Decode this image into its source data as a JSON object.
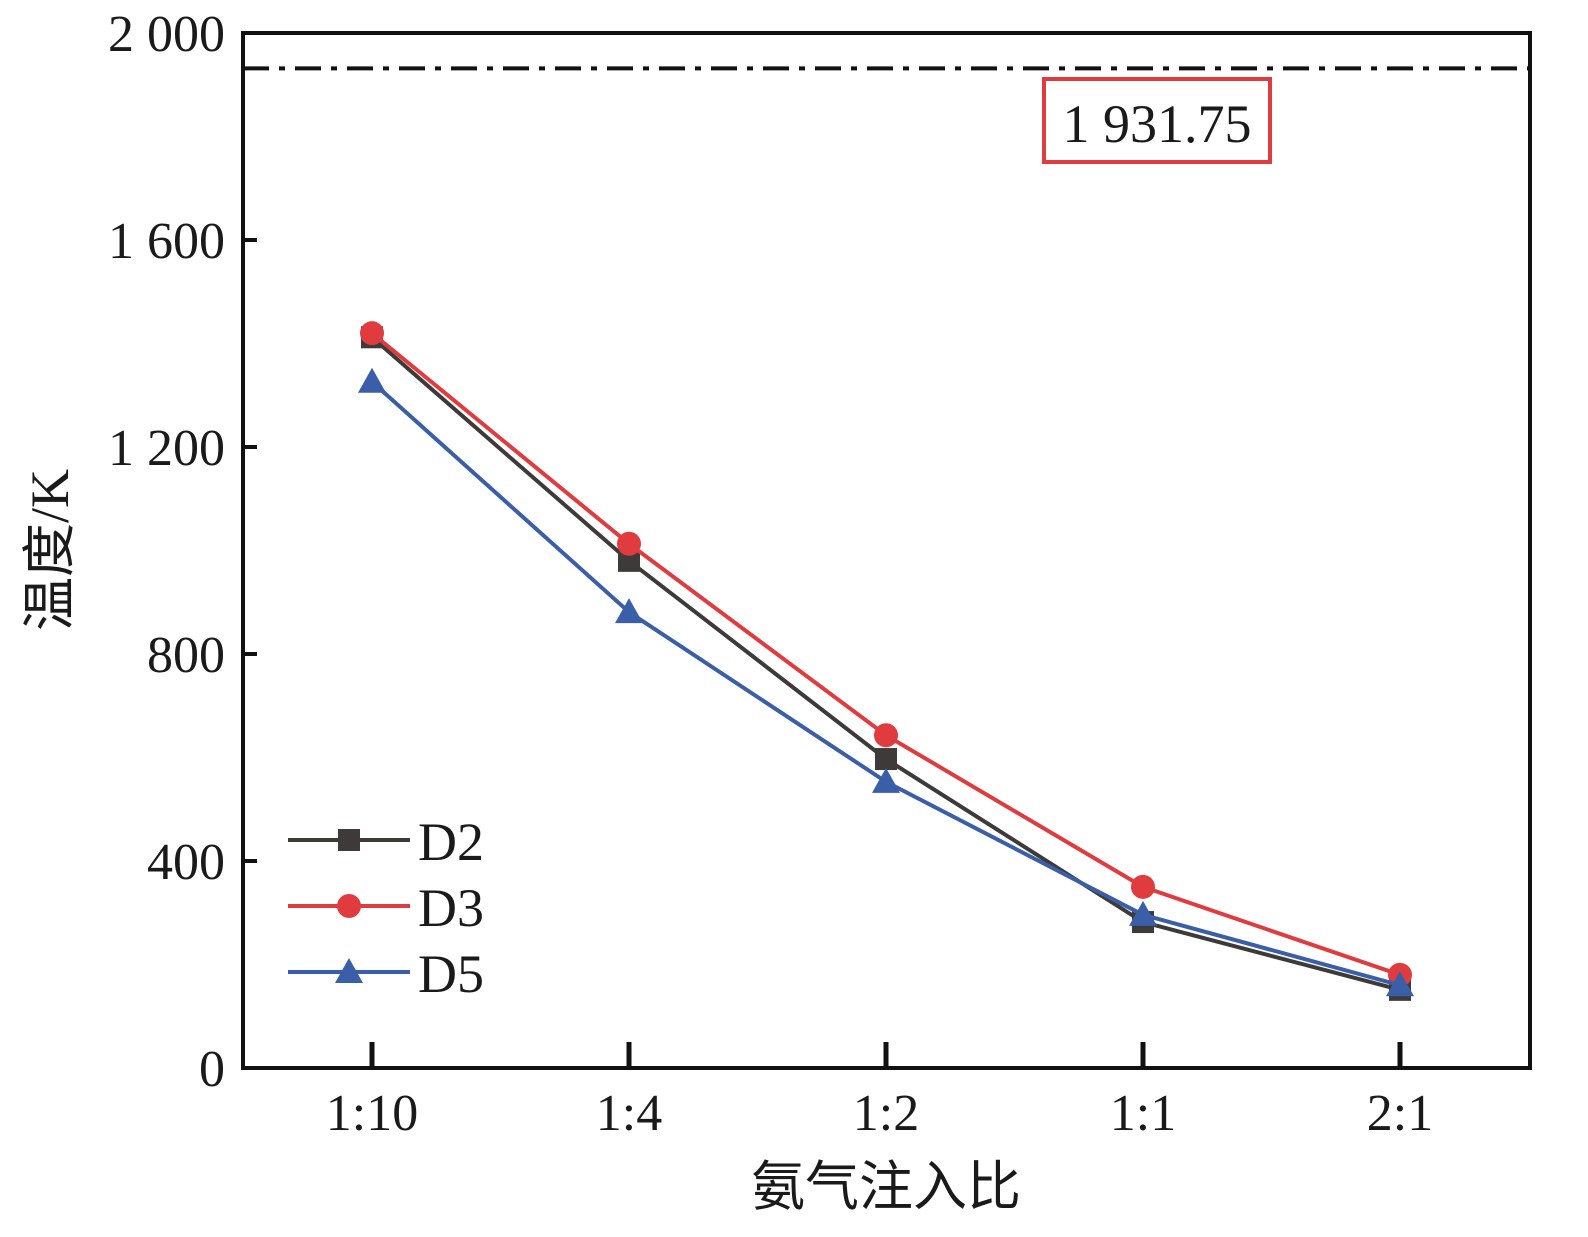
{
  "chart_data": {
    "type": "line",
    "title": "",
    "xlabel": "氨气注入比",
    "ylabel": "温度/K",
    "categories": [
      "1:10",
      "1:4",
      "1:2",
      "1:1",
      "2:1"
    ],
    "ylim": [
      0,
      2000
    ],
    "yticks": [
      0,
      400,
      800,
      1200,
      1600,
      2000
    ],
    "ytick_labels": [
      "0",
      "400",
      "800",
      "1 200",
      "1 600",
      "2 000"
    ],
    "grid": false,
    "legend_position": "bottom-left",
    "series": [
      {
        "name": "D2",
        "marker": "square",
        "color": "#3d3a39",
        "values": [
          1412,
          980,
          597,
          282,
          151
        ]
      },
      {
        "name": "D3",
        "marker": "circle",
        "color": "#e03c3f",
        "values": [
          1420,
          1013,
          643,
          350,
          180
        ]
      },
      {
        "name": "D5",
        "marker": "triangle",
        "color": "#3a5fa8",
        "values": [
          1326,
          881,
          553,
          296,
          160
        ]
      }
    ],
    "reference_line": {
      "value": 1931.75,
      "label": "1 931.75",
      "style": "dash-dot",
      "color": "#111111",
      "label_box_color": "#e03c3f"
    }
  }
}
